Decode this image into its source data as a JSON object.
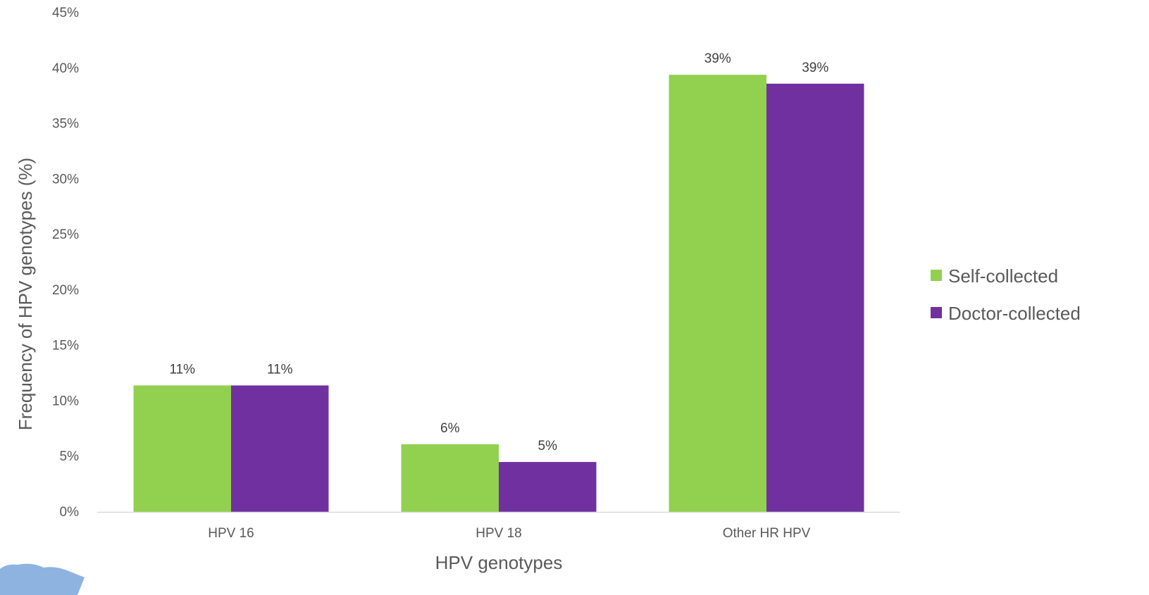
{
  "chart_data": {
    "type": "bar",
    "categories": [
      "HPV 16",
      "HPV 18",
      "Other HR HPV"
    ],
    "series": [
      {
        "name": "Self-collected",
        "values": [
          11.4,
          6.1,
          39.4
        ],
        "labels": [
          "11%",
          "6%",
          "39%"
        ],
        "color": "#92d050"
      },
      {
        "name": "Doctor-collected",
        "values": [
          11.4,
          4.5,
          38.6
        ],
        "labels": [
          "11%",
          "5%",
          "39%"
        ],
        "color": "#7030a0"
      }
    ],
    "xlabel": "HPV genotypes",
    "ylabel": "Frequency of HPV genotypes (%)",
    "ylim": [
      0,
      45
    ],
    "yticks": [
      0,
      5,
      10,
      15,
      20,
      25,
      30,
      35,
      40,
      45
    ],
    "ytick_labels": [
      "0%",
      "5%",
      "10%",
      "15%",
      "20%",
      "25%",
      "30%",
      "35%",
      "40%",
      "45%"
    ],
    "grid": false,
    "legend_position": "right"
  },
  "colors": {
    "axis_line": "#d9d9d9",
    "decoration": "#8fb3e0"
  }
}
